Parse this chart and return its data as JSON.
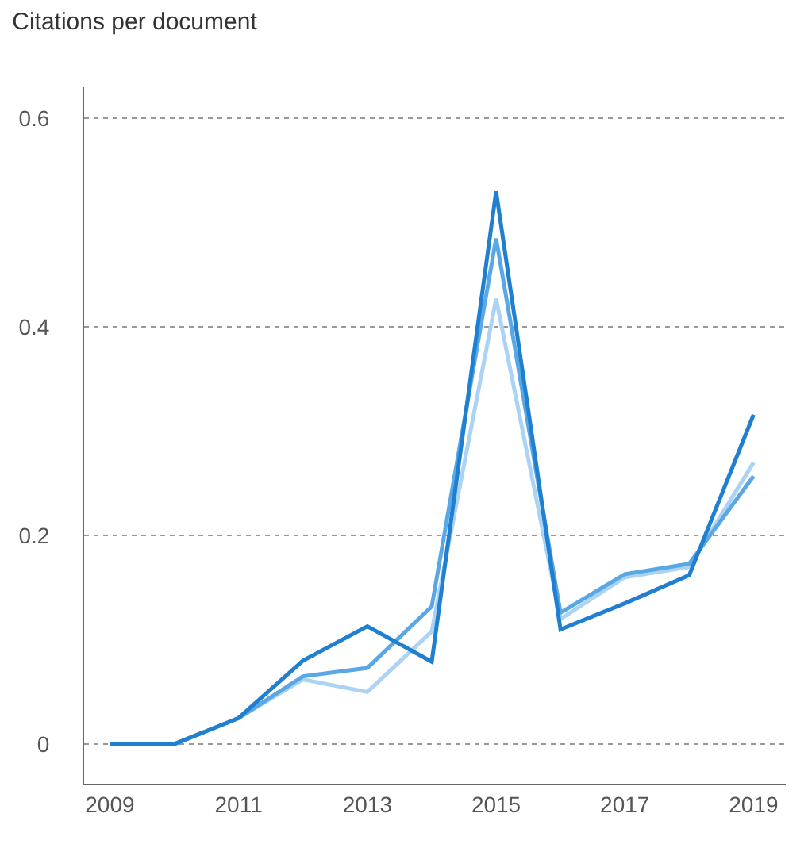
{
  "chart_data": {
    "type": "line",
    "title": "Citations per document",
    "x": [
      2009,
      2010,
      2011,
      2012,
      2013,
      2014,
      2015,
      2016,
      2017,
      2018,
      2019
    ],
    "series": [
      {
        "color": "#aad3f5",
        "values": [
          0,
          0,
          0.025,
          0.062,
          0.05,
          0.108,
          0.427,
          0.12,
          0.16,
          0.17,
          0.27
        ]
      },
      {
        "color": "#5aa7e6",
        "values": [
          0,
          0,
          0.025,
          0.065,
          0.073,
          0.132,
          0.485,
          0.126,
          0.163,
          0.173,
          0.257
        ]
      },
      {
        "color": "#1f7fd0",
        "values": [
          0,
          0,
          0.025,
          0.08,
          0.113,
          0.079,
          0.53,
          0.11,
          0.135,
          0.162,
          0.316
        ]
      }
    ],
    "xlim": [
      2008.6,
      2019.5
    ],
    "xticks": [
      2009,
      2011,
      2013,
      2015,
      2017,
      2019
    ],
    "ylim": [
      -0.038,
      0.63
    ],
    "yticks": [
      0,
      0.2,
      0.4,
      0.6
    ],
    "grid": "y",
    "marker": "none",
    "line_style": "solid"
  }
}
